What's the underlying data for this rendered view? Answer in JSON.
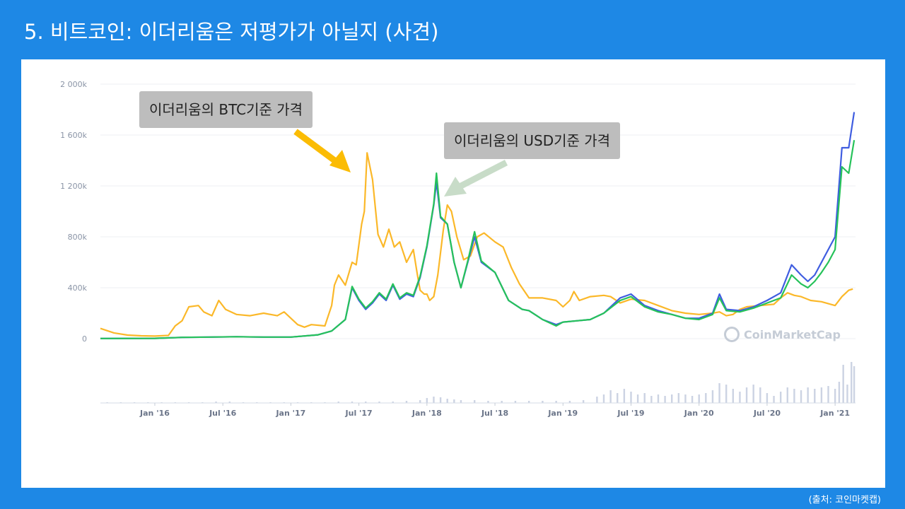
{
  "slide": {
    "title": "5. 비트코인: 이더리움은 저평가가 아닐지 (사견)",
    "source": "(출처: 코인마켓캡)"
  },
  "annotations": {
    "btc_label": "이더리움의 BTC기준 가격",
    "usd_label": "이더리움의 USD기준 가격",
    "btc_arrow_color": "#fbbc04",
    "usd_arrow_color": "#c8dcc8"
  },
  "watermark": {
    "text": "CoinMarketCap",
    "icon": "coinmarketcap-logo-icon"
  },
  "colors": {
    "background": "#1e88e5",
    "btc": "#fbb829",
    "usd": "#3f5de0",
    "green": "#26c25a",
    "volume": "#ccd3e3"
  },
  "chart_data": {
    "type": "line",
    "yticks": [
      "2 000k",
      "1 600k",
      "1 200k",
      "800k",
      "400k",
      "0"
    ],
    "ytick_values": [
      2000000,
      1600000,
      1200000,
      800000,
      400000,
      0
    ],
    "ylim": [
      0,
      2000000
    ],
    "xticks": [
      "Jan '16",
      "Jul '16",
      "Jan '17",
      "Jul '17",
      "Jan '18",
      "Jul '18",
      "Jan '19",
      "Jul '19",
      "Jan '20",
      "Jul '20",
      "Jan '21"
    ],
    "x_range": [
      2015.6,
      2021.15
    ],
    "series": [
      {
        "id": "btc",
        "color": "#fbb829",
        "points": [
          [
            2015.6,
            80000
          ],
          [
            2015.7,
            45000
          ],
          [
            2015.8,
            28000
          ],
          [
            2015.9,
            22000
          ],
          [
            2016.0,
            20000
          ],
          [
            2016.1,
            25000
          ],
          [
            2016.15,
            100000
          ],
          [
            2016.2,
            140000
          ],
          [
            2016.25,
            250000
          ],
          [
            2016.32,
            260000
          ],
          [
            2016.36,
            210000
          ],
          [
            2016.42,
            180000
          ],
          [
            2016.47,
            300000
          ],
          [
            2016.52,
            230000
          ],
          [
            2016.6,
            190000
          ],
          [
            2016.7,
            180000
          ],
          [
            2016.8,
            200000
          ],
          [
            2016.9,
            180000
          ],
          [
            2016.95,
            210000
          ],
          [
            2017.0,
            160000
          ],
          [
            2017.05,
            110000
          ],
          [
            2017.1,
            90000
          ],
          [
            2017.15,
            110000
          ],
          [
            2017.25,
            100000
          ],
          [
            2017.3,
            260000
          ],
          [
            2017.32,
            420000
          ],
          [
            2017.35,
            500000
          ],
          [
            2017.4,
            420000
          ],
          [
            2017.45,
            600000
          ],
          [
            2017.48,
            580000
          ],
          [
            2017.52,
            900000
          ],
          [
            2017.54,
            1000000
          ],
          [
            2017.56,
            1460000
          ],
          [
            2017.6,
            1250000
          ],
          [
            2017.64,
            820000
          ],
          [
            2017.68,
            720000
          ],
          [
            2017.72,
            860000
          ],
          [
            2017.76,
            720000
          ],
          [
            2017.8,
            760000
          ],
          [
            2017.85,
            600000
          ],
          [
            2017.9,
            700000
          ],
          [
            2017.93,
            500000
          ],
          [
            2017.95,
            380000
          ],
          [
            2017.98,
            350000
          ],
          [
            2018.0,
            350000
          ],
          [
            2018.02,
            300000
          ],
          [
            2018.05,
            330000
          ],
          [
            2018.08,
            500000
          ],
          [
            2018.12,
            850000
          ],
          [
            2018.15,
            1050000
          ],
          [
            2018.18,
            1000000
          ],
          [
            2018.22,
            800000
          ],
          [
            2018.27,
            620000
          ],
          [
            2018.32,
            650000
          ],
          [
            2018.37,
            800000
          ],
          [
            2018.42,
            830000
          ],
          [
            2018.5,
            760000
          ],
          [
            2018.56,
            720000
          ],
          [
            2018.62,
            560000
          ],
          [
            2018.68,
            430000
          ],
          [
            2018.75,
            320000
          ],
          [
            2018.85,
            320000
          ],
          [
            2018.95,
            300000
          ],
          [
            2019.0,
            250000
          ],
          [
            2019.05,
            300000
          ],
          [
            2019.08,
            370000
          ],
          [
            2019.12,
            300000
          ],
          [
            2019.2,
            330000
          ],
          [
            2019.3,
            340000
          ],
          [
            2019.35,
            330000
          ],
          [
            2019.42,
            280000
          ],
          [
            2019.5,
            310000
          ],
          [
            2019.6,
            300000
          ],
          [
            2019.7,
            260000
          ],
          [
            2019.8,
            220000
          ],
          [
            2019.9,
            200000
          ],
          [
            2020.0,
            190000
          ],
          [
            2020.1,
            200000
          ],
          [
            2020.15,
            210000
          ],
          [
            2020.2,
            180000
          ],
          [
            2020.25,
            190000
          ],
          [
            2020.3,
            230000
          ],
          [
            2020.35,
            250000
          ],
          [
            2020.45,
            260000
          ],
          [
            2020.55,
            270000
          ],
          [
            2020.6,
            320000
          ],
          [
            2020.65,
            360000
          ],
          [
            2020.7,
            340000
          ],
          [
            2020.75,
            330000
          ],
          [
            2020.82,
            300000
          ],
          [
            2020.9,
            290000
          ],
          [
            2021.0,
            260000
          ],
          [
            2021.05,
            330000
          ],
          [
            2021.1,
            380000
          ],
          [
            2021.13,
            390000
          ]
        ]
      },
      {
        "id": "usd",
        "color": "#3f5de0",
        "points": [
          [
            2015.6,
            1000
          ],
          [
            2016.0,
            2000
          ],
          [
            2016.2,
            10000
          ],
          [
            2016.4,
            12000
          ],
          [
            2016.6,
            15000
          ],
          [
            2016.8,
            12000
          ],
          [
            2017.0,
            12000
          ],
          [
            2017.2,
            30000
          ],
          [
            2017.3,
            60000
          ],
          [
            2017.4,
            150000
          ],
          [
            2017.45,
            400000
          ],
          [
            2017.5,
            300000
          ],
          [
            2017.55,
            230000
          ],
          [
            2017.6,
            280000
          ],
          [
            2017.65,
            350000
          ],
          [
            2017.7,
            300000
          ],
          [
            2017.75,
            420000
          ],
          [
            2017.8,
            310000
          ],
          [
            2017.85,
            350000
          ],
          [
            2017.9,
            330000
          ],
          [
            2017.95,
            480000
          ],
          [
            2018.0,
            720000
          ],
          [
            2018.05,
            1050000
          ],
          [
            2018.07,
            1230000
          ],
          [
            2018.1,
            950000
          ],
          [
            2018.15,
            900000
          ],
          [
            2018.2,
            600000
          ],
          [
            2018.25,
            400000
          ],
          [
            2018.3,
            600000
          ],
          [
            2018.35,
            800000
          ],
          [
            2018.4,
            600000
          ],
          [
            2018.5,
            520000
          ],
          [
            2018.6,
            300000
          ],
          [
            2018.7,
            230000
          ],
          [
            2018.75,
            220000
          ],
          [
            2018.85,
            150000
          ],
          [
            2018.95,
            110000
          ],
          [
            2019.0,
            130000
          ],
          [
            2019.1,
            140000
          ],
          [
            2019.2,
            150000
          ],
          [
            2019.3,
            200000
          ],
          [
            2019.42,
            320000
          ],
          [
            2019.5,
            350000
          ],
          [
            2019.6,
            260000
          ],
          [
            2019.7,
            220000
          ],
          [
            2019.8,
            190000
          ],
          [
            2019.9,
            160000
          ],
          [
            2020.0,
            160000
          ],
          [
            2020.1,
            200000
          ],
          [
            2020.15,
            350000
          ],
          [
            2020.2,
            230000
          ],
          [
            2020.3,
            220000
          ],
          [
            2020.4,
            250000
          ],
          [
            2020.5,
            300000
          ],
          [
            2020.6,
            360000
          ],
          [
            2020.68,
            580000
          ],
          [
            2020.75,
            500000
          ],
          [
            2020.8,
            450000
          ],
          [
            2020.85,
            500000
          ],
          [
            2020.9,
            600000
          ],
          [
            2020.95,
            700000
          ],
          [
            2021.0,
            800000
          ],
          [
            2021.05,
            1500000
          ],
          [
            2021.1,
            1500000
          ],
          [
            2021.14,
            1780000
          ]
        ]
      },
      {
        "id": "green",
        "color": "#26c25a",
        "points": [
          [
            2015.6,
            1000
          ],
          [
            2016.0,
            2000
          ],
          [
            2016.2,
            10000
          ],
          [
            2016.4,
            12000
          ],
          [
            2016.6,
            15000
          ],
          [
            2016.8,
            12000
          ],
          [
            2017.0,
            12000
          ],
          [
            2017.2,
            30000
          ],
          [
            2017.3,
            60000
          ],
          [
            2017.4,
            150000
          ],
          [
            2017.45,
            410000
          ],
          [
            2017.5,
            310000
          ],
          [
            2017.55,
            240000
          ],
          [
            2017.6,
            290000
          ],
          [
            2017.65,
            360000
          ],
          [
            2017.7,
            310000
          ],
          [
            2017.75,
            430000
          ],
          [
            2017.8,
            320000
          ],
          [
            2017.85,
            360000
          ],
          [
            2017.9,
            340000
          ],
          [
            2017.95,
            490000
          ],
          [
            2018.0,
            730000
          ],
          [
            2018.05,
            1060000
          ],
          [
            2018.07,
            1300000
          ],
          [
            2018.1,
            960000
          ],
          [
            2018.15,
            900000
          ],
          [
            2018.2,
            600000
          ],
          [
            2018.25,
            400000
          ],
          [
            2018.3,
            610000
          ],
          [
            2018.35,
            840000
          ],
          [
            2018.4,
            610000
          ],
          [
            2018.5,
            520000
          ],
          [
            2018.6,
            300000
          ],
          [
            2018.7,
            230000
          ],
          [
            2018.75,
            220000
          ],
          [
            2018.85,
            150000
          ],
          [
            2018.95,
            100000
          ],
          [
            2019.0,
            130000
          ],
          [
            2019.1,
            140000
          ],
          [
            2019.2,
            150000
          ],
          [
            2019.3,
            200000
          ],
          [
            2019.42,
            300000
          ],
          [
            2019.5,
            330000
          ],
          [
            2019.6,
            250000
          ],
          [
            2019.7,
            210000
          ],
          [
            2019.8,
            190000
          ],
          [
            2019.9,
            160000
          ],
          [
            2020.0,
            150000
          ],
          [
            2020.1,
            190000
          ],
          [
            2020.15,
            320000
          ],
          [
            2020.2,
            220000
          ],
          [
            2020.3,
            210000
          ],
          [
            2020.4,
            240000
          ],
          [
            2020.5,
            280000
          ],
          [
            2020.6,
            320000
          ],
          [
            2020.68,
            500000
          ],
          [
            2020.75,
            430000
          ],
          [
            2020.8,
            400000
          ],
          [
            2020.85,
            450000
          ],
          [
            2020.9,
            520000
          ],
          [
            2020.95,
            600000
          ],
          [
            2021.0,
            700000
          ],
          [
            2021.05,
            1350000
          ],
          [
            2021.1,
            1300000
          ],
          [
            2021.14,
            1560000
          ]
        ]
      }
    ],
    "volume": [
      [
        2015.65,
        1
      ],
      [
        2015.75,
        1
      ],
      [
        2015.85,
        1
      ],
      [
        2015.95,
        1
      ],
      [
        2016.05,
        1
      ],
      [
        2016.15,
        1
      ],
      [
        2016.25,
        1
      ],
      [
        2016.35,
        1
      ],
      [
        2016.45,
        2
      ],
      [
        2016.55,
        2
      ],
      [
        2016.65,
        1
      ],
      [
        2016.75,
        1
      ],
      [
        2016.85,
        1
      ],
      [
        2016.95,
        1
      ],
      [
        2017.05,
        1
      ],
      [
        2017.15,
        1
      ],
      [
        2017.25,
        1
      ],
      [
        2017.35,
        2
      ],
      [
        2017.45,
        2
      ],
      [
        2017.55,
        2
      ],
      [
        2017.65,
        2
      ],
      [
        2017.75,
        2
      ],
      [
        2017.85,
        3
      ],
      [
        2017.95,
        4
      ],
      [
        2018.0,
        7
      ],
      [
        2018.05,
        9
      ],
      [
        2018.1,
        8
      ],
      [
        2018.15,
        6
      ],
      [
        2018.2,
        5
      ],
      [
        2018.25,
        4
      ],
      [
        2018.35,
        4
      ],
      [
        2018.45,
        3
      ],
      [
        2018.55,
        3
      ],
      [
        2018.65,
        3
      ],
      [
        2018.75,
        3
      ],
      [
        2018.85,
        3
      ],
      [
        2018.95,
        3
      ],
      [
        2019.05,
        3
      ],
      [
        2019.15,
        4
      ],
      [
        2019.25,
        9
      ],
      [
        2019.3,
        12
      ],
      [
        2019.35,
        18
      ],
      [
        2019.4,
        14
      ],
      [
        2019.45,
        20
      ],
      [
        2019.5,
        16
      ],
      [
        2019.55,
        12
      ],
      [
        2019.6,
        14
      ],
      [
        2019.65,
        10
      ],
      [
        2019.7,
        12
      ],
      [
        2019.75,
        10
      ],
      [
        2019.8,
        12
      ],
      [
        2019.85,
        14
      ],
      [
        2019.9,
        12
      ],
      [
        2019.95,
        10
      ],
      [
        2020.0,
        12
      ],
      [
        2020.05,
        14
      ],
      [
        2020.1,
        18
      ],
      [
        2020.15,
        28
      ],
      [
        2020.2,
        26
      ],
      [
        2020.25,
        20
      ],
      [
        2020.3,
        16
      ],
      [
        2020.35,
        22
      ],
      [
        2020.4,
        26
      ],
      [
        2020.45,
        22
      ],
      [
        2020.5,
        14
      ],
      [
        2020.55,
        10
      ],
      [
        2020.6,
        16
      ],
      [
        2020.65,
        22
      ],
      [
        2020.7,
        20
      ],
      [
        2020.75,
        18
      ],
      [
        2020.8,
        22
      ],
      [
        2020.85,
        20
      ],
      [
        2020.9,
        22
      ],
      [
        2020.95,
        24
      ],
      [
        2021.0,
        20
      ],
      [
        2021.03,
        30
      ],
      [
        2021.06,
        54
      ],
      [
        2021.09,
        26
      ],
      [
        2021.12,
        58
      ],
      [
        2021.14,
        52
      ]
    ]
  }
}
